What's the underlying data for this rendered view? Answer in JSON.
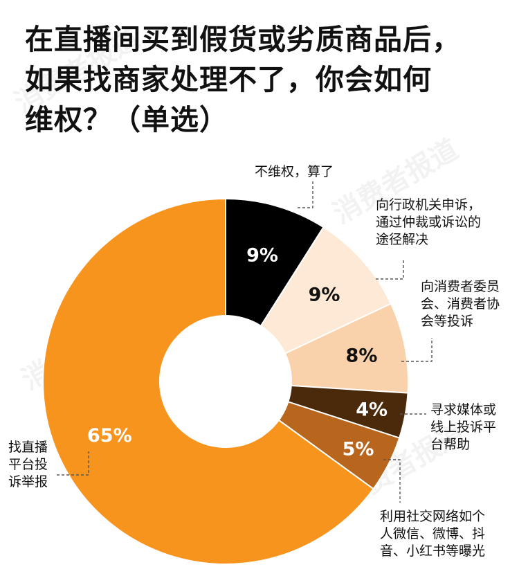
{
  "title_lines": [
    "在直播间买到假货或劣质商品后，",
    "如果找商家处理不了，你会如何",
    "维权？（单选）"
  ],
  "watermark": "消费者报道",
  "chart_data": {
    "type": "pie",
    "donut": true,
    "slices": [
      {
        "label_lines": [
          "不维权，算了"
        ],
        "value": 9,
        "display": "9%",
        "color": "#000000",
        "text_color": "#ffffff"
      },
      {
        "label_lines": [
          "向行政机关申诉，",
          "通过仲裁或诉讼的",
          "途径解决"
        ],
        "value": 9,
        "display": "9%",
        "color": "#fde9d5",
        "text_color": "#111111"
      },
      {
        "label_lines": [
          "向消费者委员",
          "会、消费者协",
          "会等投诉"
        ],
        "value": 8,
        "display": "8%",
        "color": "#f9d2ab",
        "text_color": "#111111"
      },
      {
        "label_lines": [
          "寻求媒体或",
          "线上投诉平",
          "台帮助"
        ],
        "value": 4,
        "display": "4%",
        "color": "#4a2a0a",
        "text_color": "#ffffff"
      },
      {
        "label_lines": [
          "利用社交网络如个",
          "人微信、微博、抖",
          "音、小红书等曝光"
        ],
        "value": 5,
        "display": "5%",
        "color": "#b8651d",
        "text_color": "#ffffff"
      },
      {
        "label_lines": [
          "找直播",
          "平台投",
          "诉举报"
        ],
        "value": 65,
        "display": "65%",
        "color": "#f7941d",
        "text_color": "#ffffff"
      }
    ]
  }
}
